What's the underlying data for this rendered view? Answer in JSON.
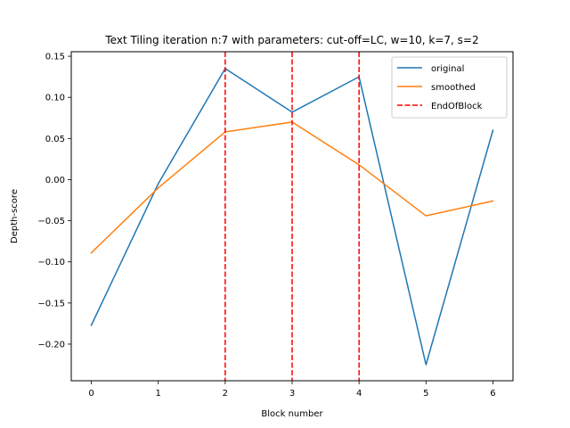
{
  "chart_data": {
    "type": "line",
    "title": "Text Tiling iteration n:7 with parameters: cut-off=LC, w=10, k=7, s=2",
    "xlabel": "Block number",
    "ylabel": "Depth-score",
    "x": [
      0,
      1,
      2,
      3,
      4,
      5,
      6
    ],
    "xlim": [
      -0.3,
      6.3
    ],
    "ylim": [
      -0.2445,
      0.1555
    ],
    "xticks": [
      0,
      1,
      2,
      3,
      4,
      5,
      6
    ],
    "yticks": [
      -0.2,
      -0.15,
      -0.1,
      -0.05,
      0.0,
      0.05,
      0.1,
      0.15
    ],
    "xtick_labels": [
      "0",
      "1",
      "2",
      "3",
      "4",
      "5",
      "6"
    ],
    "ytick_labels": [
      "−0.20",
      "−0.15",
      "−0.10",
      "−0.05",
      "0.00",
      "0.05",
      "0.10",
      "0.15"
    ],
    "series": [
      {
        "name": "original",
        "values": [
          -0.177,
          -0.005,
          0.135,
          0.082,
          0.125,
          -0.225,
          0.06
        ],
        "color": "#1f77b4"
      },
      {
        "name": "smoothed",
        "values": [
          -0.089,
          -0.01,
          0.058,
          0.07,
          0.018,
          -0.044,
          -0.026
        ],
        "color": "#ff7f0e"
      }
    ],
    "vlines": {
      "name": "EndOfBlock",
      "x": [
        2,
        3,
        4
      ],
      "color": "#ff0000",
      "style": "dashed"
    },
    "grid": false,
    "legend": "top-right"
  }
}
